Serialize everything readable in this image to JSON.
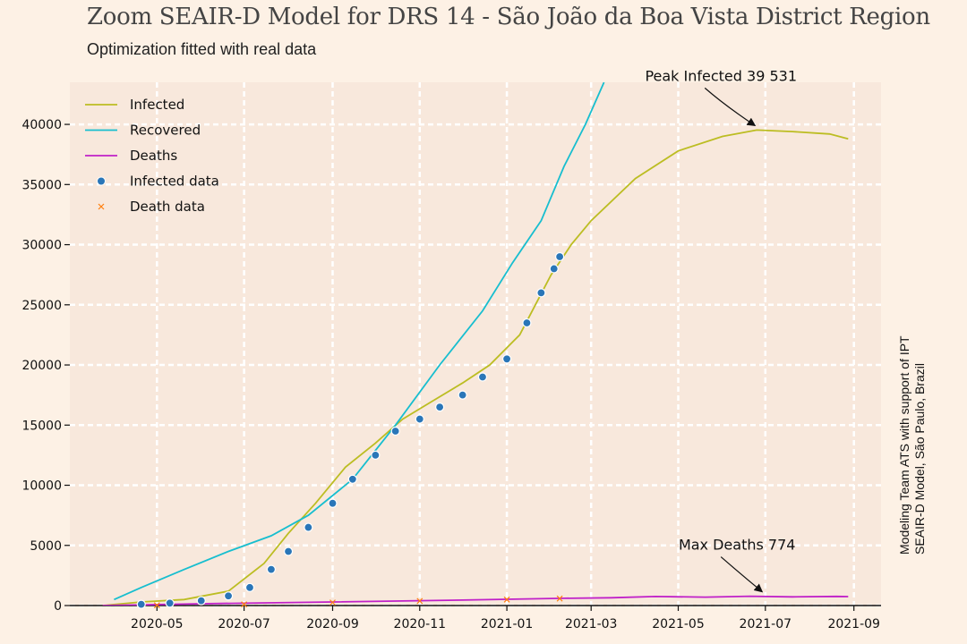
{
  "header": {
    "title": "Zoom SEAIR-D Model for DRS 14 - São João da Boa Vista District Region",
    "subtitle": "Optimization fitted with real data"
  },
  "side_note": {
    "line1": "Modeling Team ATS with support of IPT",
    "line2": "SEAIR-D Model, São Paulo, Brazil"
  },
  "colors": {
    "background": "#fdf1e5",
    "plot_area": "#f8e8dc",
    "grid": "#ffffff",
    "infected": "#bcbd22",
    "recovered": "#17becf",
    "deaths": "#c020c8",
    "infected_data": "#2a76b8",
    "death_data": "#ff7f0e"
  },
  "chart_data": {
    "type": "line",
    "title": "Zoom SEAIR-D Model for DRS 14 - São João da Boa Vista District Region",
    "subtitle": "Optimization fitted with real data",
    "xlabel": "",
    "ylabel": "",
    "xlim": [
      "2020-03-01",
      "2021-09-20"
    ],
    "ylim": [
      0,
      43500
    ],
    "grid": true,
    "legend_position": "top-left",
    "x_ticks": [
      "2020-05",
      "2020-07",
      "2020-09",
      "2020-11",
      "2021-01",
      "2021-03",
      "2021-05",
      "2021-07",
      "2021-09"
    ],
    "y_ticks": [
      0,
      5000,
      10000,
      15000,
      20000,
      25000,
      30000,
      35000,
      40000
    ],
    "series": [
      {
        "name": "Infected",
        "kind": "line",
        "points": [
          [
            "2020-03-24",
            0
          ],
          [
            "2020-04-20",
            300
          ],
          [
            "2020-05-20",
            500
          ],
          [
            "2020-06-20",
            1200
          ],
          [
            "2020-07-15",
            3500
          ],
          [
            "2020-08-01",
            6000
          ],
          [
            "2020-08-20",
            8500
          ],
          [
            "2020-09-10",
            11500
          ],
          [
            "2020-10-01",
            13500
          ],
          [
            "2020-10-20",
            15500
          ],
          [
            "2020-11-10",
            17000
          ],
          [
            "2020-12-01",
            18500
          ],
          [
            "2020-12-20",
            20000
          ],
          [
            "2021-01-10",
            22500
          ],
          [
            "2021-02-01",
            27500
          ],
          [
            "2021-02-15",
            30000
          ],
          [
            "2021-03-01",
            32000
          ],
          [
            "2021-04-01",
            35500
          ],
          [
            "2021-05-01",
            37800
          ],
          [
            "2021-06-01",
            39000
          ],
          [
            "2021-06-25",
            39531
          ],
          [
            "2021-07-20",
            39400
          ],
          [
            "2021-08-15",
            39200
          ],
          [
            "2021-08-28",
            38800
          ]
        ]
      },
      {
        "name": "Recovered",
        "kind": "line",
        "points": [
          [
            "2020-04-01",
            500
          ],
          [
            "2020-04-20",
            1500
          ],
          [
            "2020-05-20",
            3000
          ],
          [
            "2020-06-20",
            4500
          ],
          [
            "2020-07-20",
            5800
          ],
          [
            "2020-08-15",
            7500
          ],
          [
            "2020-09-15",
            10500
          ],
          [
            "2020-10-15",
            15000
          ],
          [
            "2020-11-15",
            20000
          ],
          [
            "2020-12-15",
            24500
          ],
          [
            "2021-01-05",
            28500
          ],
          [
            "2021-01-25",
            32000
          ],
          [
            "2021-02-10",
            36500
          ],
          [
            "2021-02-25",
            40000
          ],
          [
            "2021-03-10",
            43500
          ]
        ]
      },
      {
        "name": "Deaths",
        "kind": "line",
        "points": [
          [
            "2020-03-24",
            0
          ],
          [
            "2020-06-01",
            150
          ],
          [
            "2020-09-01",
            300
          ],
          [
            "2020-12-01",
            450
          ],
          [
            "2021-02-10",
            600
          ],
          [
            "2021-03-15",
            650
          ],
          [
            "2021-04-15",
            750
          ],
          [
            "2021-05-20",
            700
          ],
          [
            "2021-06-20",
            774
          ],
          [
            "2021-07-20",
            720
          ],
          [
            "2021-08-20",
            760
          ],
          [
            "2021-08-28",
            740
          ]
        ]
      },
      {
        "name": "Infected data",
        "kind": "scatter",
        "points": [
          [
            "2020-04-20",
            100
          ],
          [
            "2020-05-10",
            200
          ],
          [
            "2020-06-01",
            400
          ],
          [
            "2020-06-20",
            800
          ],
          [
            "2020-07-05",
            1500
          ],
          [
            "2020-07-20",
            3000
          ],
          [
            "2020-08-01",
            4500
          ],
          [
            "2020-08-15",
            6500
          ],
          [
            "2020-09-01",
            8500
          ],
          [
            "2020-09-15",
            10500
          ],
          [
            "2020-10-01",
            12500
          ],
          [
            "2020-10-15",
            14500
          ],
          [
            "2020-11-01",
            15500
          ],
          [
            "2020-11-15",
            16500
          ],
          [
            "2020-12-01",
            17500
          ],
          [
            "2020-12-15",
            19000
          ],
          [
            "2021-01-01",
            20500
          ],
          [
            "2021-01-15",
            23500
          ],
          [
            "2021-01-25",
            26000
          ],
          [
            "2021-02-03",
            28000
          ],
          [
            "2021-02-07",
            29000
          ]
        ]
      },
      {
        "name": "Death data",
        "kind": "scatter",
        "points": [
          [
            "2020-05-01",
            20
          ],
          [
            "2020-07-01",
            100
          ],
          [
            "2020-09-01",
            250
          ],
          [
            "2020-11-01",
            380
          ],
          [
            "2021-01-01",
            500
          ],
          [
            "2021-02-07",
            580
          ]
        ]
      }
    ],
    "annotations": [
      {
        "text": "Peak Infected 39 531",
        "x": "2021-06-25",
        "y": 39531
      },
      {
        "text": "Max Deaths 774",
        "x": "2021-06-30",
        "y": 774
      }
    ]
  }
}
